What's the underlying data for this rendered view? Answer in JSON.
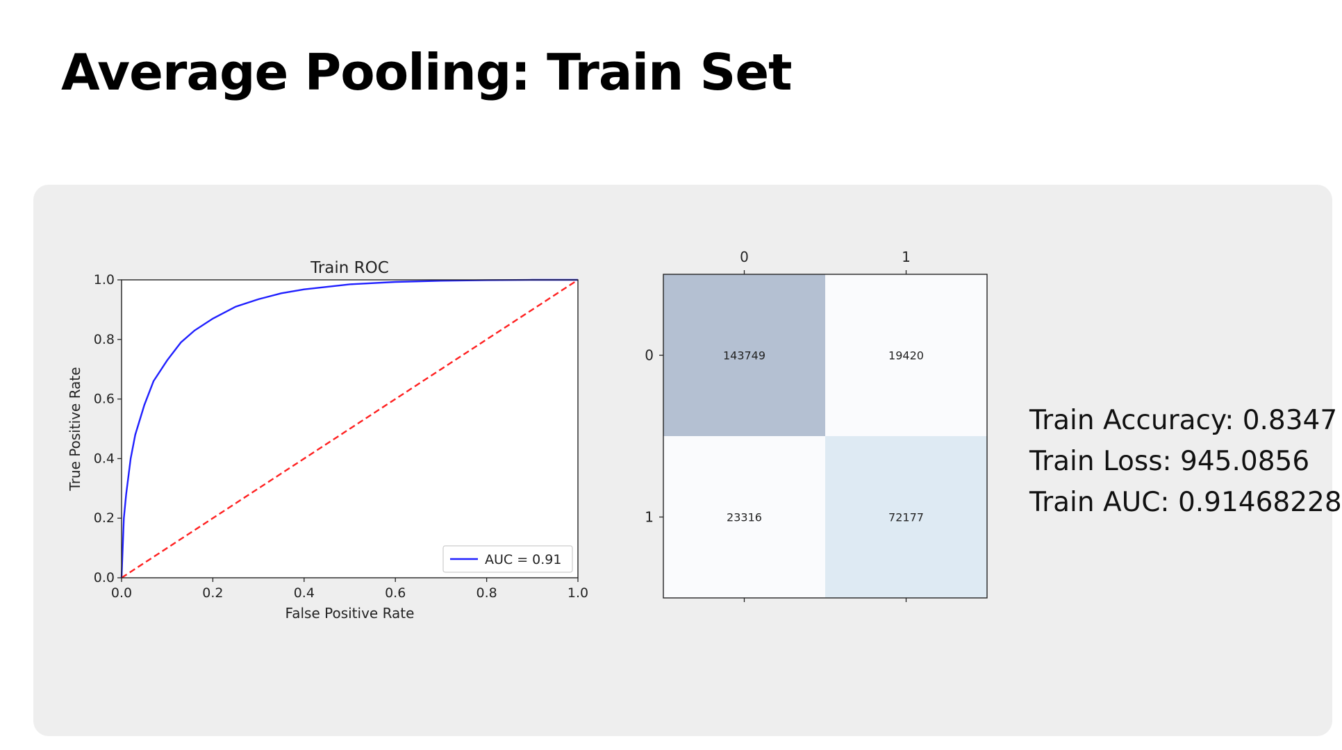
{
  "page": {
    "title": "Average Pooling: Train Set"
  },
  "metrics": {
    "accuracy": "Train Accuracy: 0.8347",
    "loss": "Train Loss: 945.0856",
    "auc": "Train AUC: 0.91468228"
  },
  "chart_data": [
    {
      "type": "line",
      "title": "Train ROC",
      "xlabel": "False Positive Rate",
      "ylabel": "True Positive Rate",
      "xlim": [
        0,
        1
      ],
      "ylim": [
        0,
        1
      ],
      "xticks": [
        "0.0",
        "0.2",
        "0.4",
        "0.6",
        "0.8",
        "1.0"
      ],
      "yticks": [
        "0.0",
        "0.2",
        "0.4",
        "0.6",
        "0.8",
        "1.0"
      ],
      "grid": false,
      "legend": "lower right",
      "series": [
        {
          "name": "AUC = 0.91",
          "color": "#1f1fff",
          "style": "solid",
          "x": [
            0.0,
            0.005,
            0.01,
            0.02,
            0.03,
            0.05,
            0.07,
            0.1,
            0.13,
            0.16,
            0.2,
            0.25,
            0.3,
            0.35,
            0.4,
            0.5,
            0.6,
            0.7,
            0.8,
            0.9,
            1.0
          ],
          "y": [
            0.0,
            0.2,
            0.28,
            0.4,
            0.48,
            0.58,
            0.66,
            0.73,
            0.79,
            0.83,
            0.87,
            0.91,
            0.935,
            0.955,
            0.968,
            0.985,
            0.993,
            0.997,
            0.999,
            1.0,
            1.0
          ]
        },
        {
          "name": "",
          "color": "#ff2020",
          "style": "dashed",
          "x": [
            0,
            1
          ],
          "y": [
            0,
            1
          ]
        }
      ]
    },
    {
      "type": "heatmap",
      "rows": [
        "0",
        "1"
      ],
      "cols": [
        "0",
        "1"
      ],
      "values": [
        [
          143749,
          19420
        ],
        [
          23316,
          72177
        ]
      ],
      "colors": [
        [
          "#b4c0d2",
          "#fafbfd"
        ],
        [
          "#fafbfd",
          "#deeaf3"
        ]
      ]
    }
  ]
}
